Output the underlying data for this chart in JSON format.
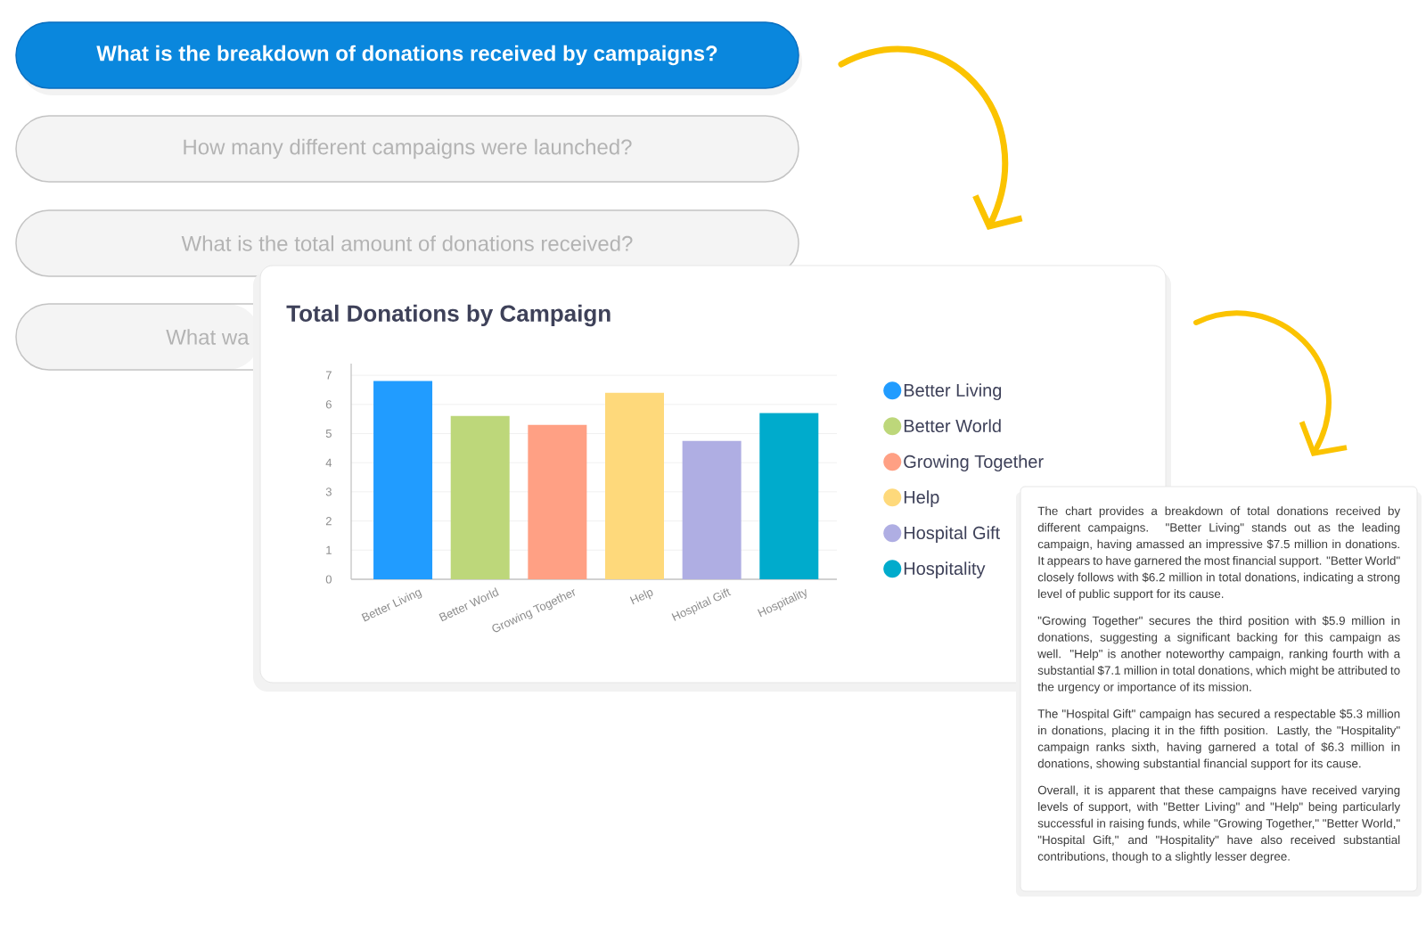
{
  "chart_data": {
    "type": "bar",
    "title": "Total Donations by Campaign",
    "categories": [
      "Better Living",
      "Better World",
      "Growing Together",
      "Help",
      "Hospital Gift",
      "Hospitality"
    ],
    "series": [
      {
        "name": "Better Living",
        "color": "#219cff",
        "values": [
          6.8,
          null,
          null,
          null,
          null,
          null
        ]
      },
      {
        "name": "Better World",
        "color": "#bdd77a",
        "values": [
          null,
          5.6,
          null,
          null,
          null,
          null
        ]
      },
      {
        "name": "Growing Together",
        "color": "#ffa084",
        "values": [
          null,
          null,
          5.3,
          null,
          null,
          null
        ]
      },
      {
        "name": "Help",
        "color": "#fed97b",
        "values": [
          null,
          null,
          null,
          6.4,
          null,
          null
        ]
      },
      {
        "name": "Hospital Gift",
        "color": "#afaee3",
        "values": [
          null,
          null,
          null,
          null,
          4.75,
          null
        ]
      },
      {
        "name": "Hospitality",
        "color": "#00abcc",
        "values": [
          null,
          null,
          null,
          null,
          null,
          5.7
        ]
      }
    ],
    "ylim": [
      0,
      7.4
    ],
    "yticks": [
      0,
      1,
      2,
      3,
      4,
      5,
      6,
      7
    ],
    "grid": "y",
    "legend": "right",
    "annotations": [
      "What is the breakdown of donations received by campaigns?",
      "How many different campaigns were launched?",
      "What is the total amount of donations received?",
      "What wa",
      "The chart provides a breakdown of total donations received by different campaigns. \"Better Living\" stands out as the leading campaign, having amassed an impressive $7.5 million in donations. It appears to have garnered the most financial support. \"Better World\" closely follows with $6.2 million in total donations, indicating a strong level of public support for its cause.",
      "\"Growing Together\" secures the third position with $5.9 million in donations, suggesting a significant backing for this campaign as well. \"Help\" is another noteworthy campaign, ranking fourth with a substantial $7.1 million in total donations, which might be attributed to the urgency or importance of its mission.",
      "The \"Hospital Gift\" campaign has secured a respectable $5.3 million in donations, placing it in the fifth position. Lastly, the \"Hospitality\" campaign ranks sixth, having garnered a total of $6.3 million in donations, showing substantial financial support for its cause.",
      "Overall, it is apparent that these campaigns have received varying levels of support, with \"Better Living\" and \"Help\" being particularly successful in raising funds, while \"Growing Together,\" \"Better World,\" \"Hospital Gift,\" and \"Hospitality\" have also received substantial contributions, though to a slightly lesser degree."
    ]
  }
}
